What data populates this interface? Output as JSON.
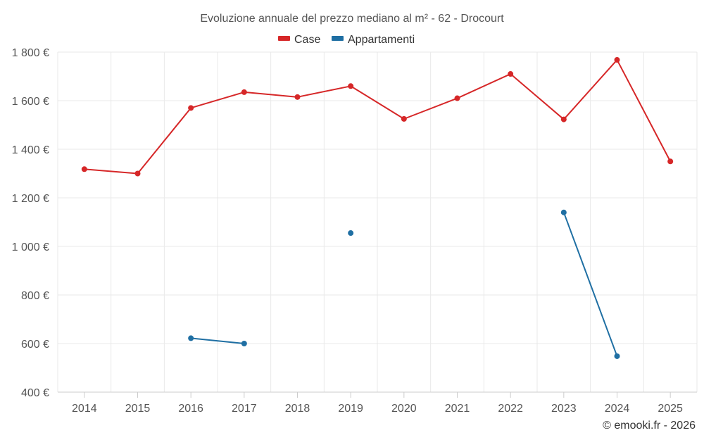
{
  "chart_data": {
    "type": "line",
    "title": "Evoluzione annuale del prezzo mediano al m² - 62 - Drocourt",
    "categories": [
      "2014",
      "2015",
      "2016",
      "2017",
      "2018",
      "2019",
      "2020",
      "2021",
      "2022",
      "2023",
      "2024",
      "2025"
    ],
    "y_ticks": [
      "400 €",
      "600 €",
      "800 €",
      "1 000 €",
      "1 200 €",
      "1 400 €",
      "1 600 €",
      "1 800 €"
    ],
    "ylim": [
      400,
      1800
    ],
    "y_tick_step": 200,
    "grid": true,
    "legend_position": "top-center",
    "series": [
      {
        "name": "Case",
        "color": "#d62728",
        "values": [
          1318,
          1300,
          1570,
          1635,
          1615,
          1660,
          1525,
          1610,
          1710,
          1523,
          1768,
          1350
        ]
      },
      {
        "name": "Appartamenti",
        "color": "#1f6fa3",
        "values": [
          null,
          null,
          622,
          600,
          null,
          1055,
          null,
          null,
          null,
          1140,
          548,
          null
        ]
      }
    ]
  },
  "credit": "© emooki.fr - 2026"
}
